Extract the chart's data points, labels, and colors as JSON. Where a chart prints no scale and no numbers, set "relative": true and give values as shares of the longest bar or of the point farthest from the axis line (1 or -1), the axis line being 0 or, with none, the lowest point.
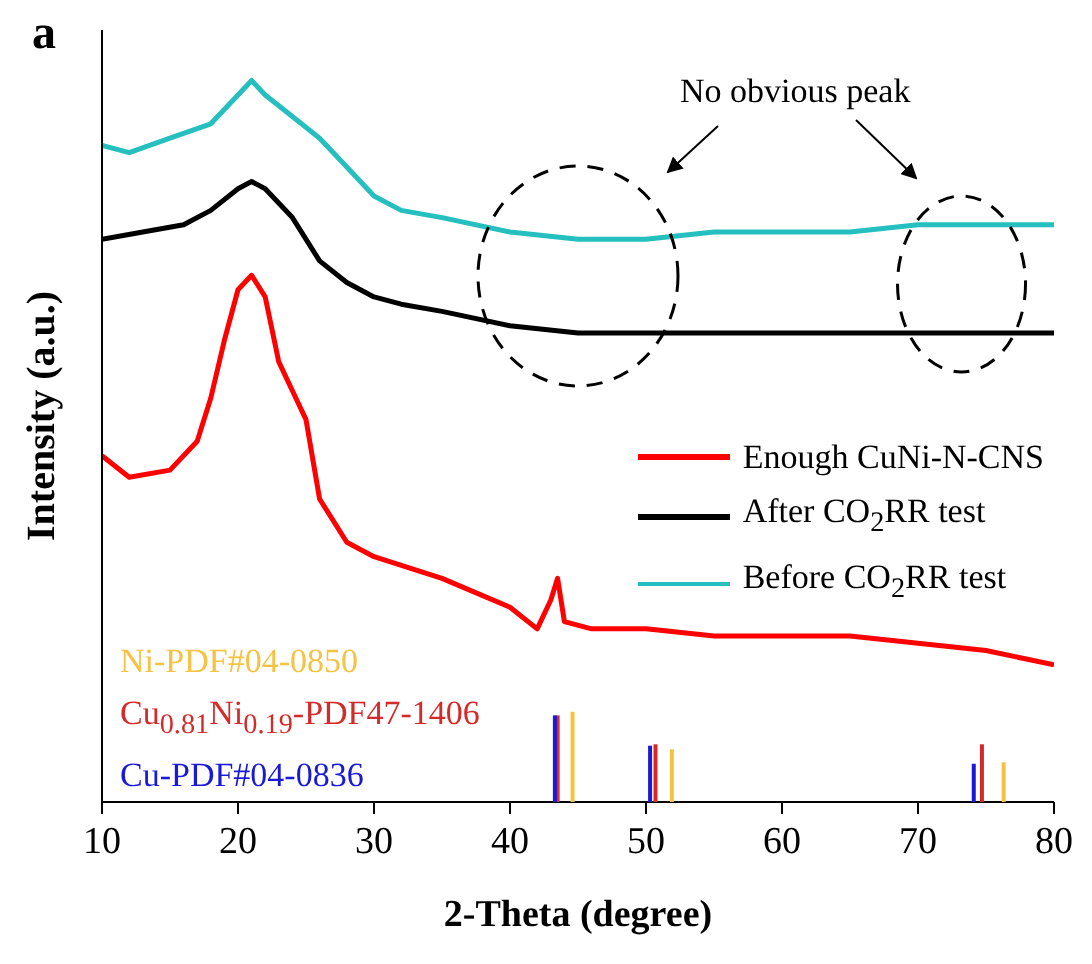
{
  "chart_data": {
    "type": "line",
    "relative": true,
    "xlabel": "2-Theta (degree)",
    "ylabel": "Intensity (a.u.)",
    "xlim": [
      10,
      80
    ],
    "xticks": [
      10,
      20,
      30,
      40,
      50,
      60,
      70,
      80
    ],
    "grid": false,
    "legend": "right",
    "marker": "none",
    "annotations": [
      "a",
      "No obvious peak"
    ],
    "series": [
      {
        "name": "Enough CuNi-N-CNS",
        "color": "#ff0000",
        "x": [
          10,
          12,
          15,
          17,
          18,
          19,
          20,
          21,
          22,
          23,
          24,
          25,
          26,
          28,
          30,
          35,
          40,
          42,
          43,
          43.5,
          44,
          46,
          50,
          55,
          60,
          65,
          70,
          75,
          80
        ],
        "values": [
          0.48,
          0.45,
          0.46,
          0.5,
          0.56,
          0.64,
          0.71,
          0.73,
          0.7,
          0.61,
          0.57,
          0.53,
          0.42,
          0.36,
          0.34,
          0.31,
          0.27,
          0.24,
          0.28,
          0.31,
          0.25,
          0.24,
          0.24,
          0.23,
          0.23,
          0.23,
          0.22,
          0.21,
          0.19
        ]
      },
      {
        "name": "After CO$_{2}$RR test",
        "color": "#000000",
        "x": [
          10,
          13,
          16,
          18,
          20,
          21,
          22,
          24,
          26,
          28,
          30,
          32,
          35,
          40,
          45,
          50,
          55,
          60,
          65,
          70,
          75,
          80
        ],
        "values": [
          0.78,
          0.79,
          0.8,
          0.82,
          0.85,
          0.86,
          0.85,
          0.81,
          0.75,
          0.72,
          0.7,
          0.69,
          0.68,
          0.66,
          0.65,
          0.65,
          0.65,
          0.65,
          0.65,
          0.65,
          0.65,
          0.65
        ]
      },
      {
        "name": "Before CO$_{2}$RR test",
        "color": "#26bfbf",
        "x": [
          10,
          12,
          15,
          18,
          20,
          21,
          22,
          24,
          26,
          28,
          30,
          32,
          35,
          40,
          45,
          50,
          55,
          60,
          65,
          70,
          75,
          80
        ],
        "values": [
          0.91,
          0.9,
          0.92,
          0.94,
          0.98,
          1.0,
          0.98,
          0.95,
          0.92,
          0.88,
          0.84,
          0.82,
          0.81,
          0.79,
          0.78,
          0.78,
          0.79,
          0.79,
          0.79,
          0.8,
          0.8,
          0.8
        ]
      },
      {
        "type": "bar",
        "name": "Ni-PDF#04-0850",
        "color": "#f5c242",
        "x": [
          44.6,
          51.9,
          76.3
        ],
        "values": [
          0.125,
          0.073,
          0.055
        ]
      },
      {
        "type": "bar",
        "name": "Cu$_{0.81}$Ni$_{0.19}$-PDF47-1406",
        "color": "#d42a2a",
        "x": [
          43.5,
          50.7,
          74.7
        ],
        "values": [
          0.12,
          0.08,
          0.08
        ]
      },
      {
        "type": "bar",
        "name": "Cu-PDF#04-0836",
        "color": "#1a1ad6",
        "x": [
          43.3,
          50.3,
          74.1
        ],
        "values": [
          0.12,
          0.078,
          0.053
        ]
      }
    ]
  }
}
